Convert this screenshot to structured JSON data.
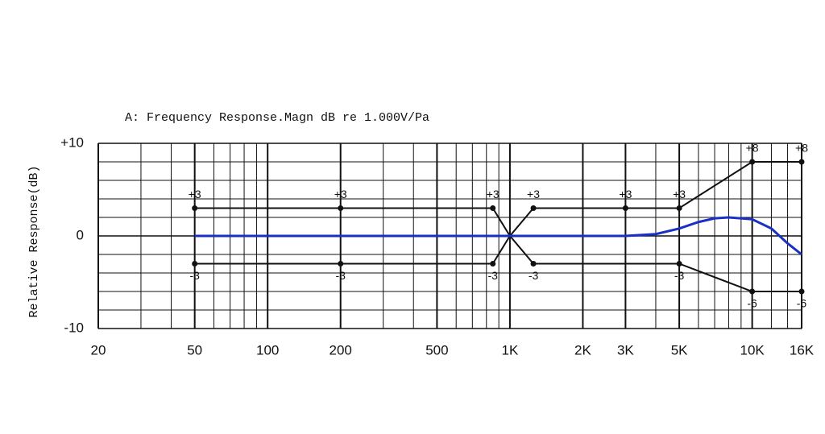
{
  "chart_data": {
    "type": "line",
    "title": "A: Frequency Response.Magn  dB re 1.000V/Pa",
    "y_label": "Relative Response(dB)",
    "log_x": true,
    "xlim": [
      20,
      16000
    ],
    "ylim": [
      -10,
      10
    ],
    "xticks": [
      20,
      50,
      100,
      200,
      500,
      {
        "value": 1000,
        "label": "1K"
      },
      {
        "value": 2000,
        "label": "2K"
      },
      {
        "value": 3000,
        "label": "3K"
      },
      {
        "value": 5000,
        "label": "5K"
      },
      {
        "value": 10000,
        "label": "10K"
      },
      {
        "value": 16000,
        "label": "16K"
      }
    ],
    "x_gridlines": [
      30,
      40,
      60,
      70,
      80,
      90,
      300,
      400,
      600,
      700,
      800,
      900,
      4000,
      6000,
      7000,
      8000,
      9000,
      12000,
      14000
    ],
    "yticks": [
      {
        "value": 10,
        "label": "+10"
      },
      0,
      -10
    ],
    "y_gridlines": [
      8,
      6,
      4,
      2,
      -2,
      -4,
      -6,
      -8
    ],
    "grid": true,
    "series": [
      {
        "color": "#111111",
        "x": [
          50,
          200,
          850,
          1000,
          1250,
          3000,
          5000,
          10000,
          16000
        ],
        "values": [
          3,
          3,
          3,
          0,
          3,
          3,
          3,
          8,
          8
        ],
        "value_labels": [
          "+3",
          "+3",
          "+3",
          null,
          "+3",
          "+3",
          "+3",
          "+8",
          "+8"
        ],
        "markers": true
      },
      {
        "color": "#111111",
        "x": [
          50,
          200,
          850,
          1000,
          1250,
          5000,
          10000,
          16000
        ],
        "values": [
          -3,
          -3,
          -3,
          0,
          -3,
          -3,
          -6,
          -6
        ],
        "value_labels": [
          "-3",
          "-3",
          "-3",
          null,
          "-3",
          "-3",
          "-6",
          "-6"
        ],
        "markers": true
      },
      {
        "color": "#1a2fc4",
        "x": [
          50,
          500,
          1000,
          2000,
          3000,
          4000,
          5000,
          6000,
          7000,
          8000,
          10000,
          12000,
          14000,
          16000
        ],
        "values": [
          0,
          0,
          0,
          0,
          0,
          0.2,
          0.8,
          1.5,
          1.9,
          2.0,
          1.8,
          0.8,
          -0.8,
          -2.0
        ],
        "markers": false
      }
    ]
  }
}
